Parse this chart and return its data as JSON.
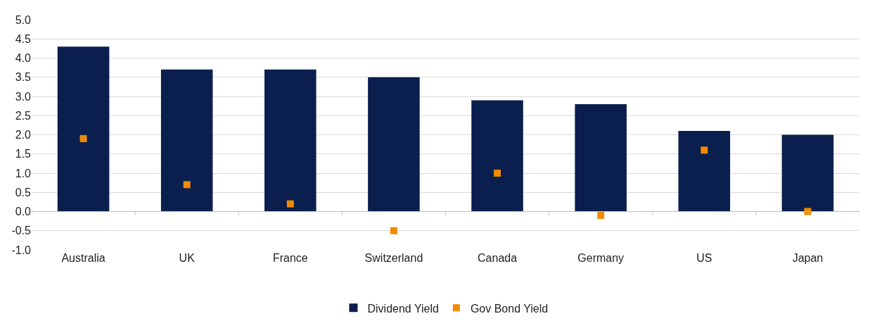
{
  "chart_data": {
    "type": "bar",
    "categories": [
      "Australia",
      "UK",
      "France",
      "Switzerland",
      "Canada",
      "Germany",
      "US",
      "Japan"
    ],
    "series": [
      {
        "name": "Dividend Yield",
        "color": "#0b1f4e",
        "values": [
          4.3,
          3.7,
          3.7,
          3.5,
          2.9,
          2.8,
          2.1,
          2.0
        ]
      },
      {
        "name": "Gov Bond Yield",
        "type": "scatter",
        "color": "#f28a00",
        "marker": "square",
        "values": [
          1.9,
          0.7,
          0.2,
          -0.5,
          1.0,
          -0.1,
          1.6,
          0.0
        ]
      }
    ],
    "ylim": [
      -1,
      5
    ],
    "yticks": [
      {
        "value": -1,
        "label": "-1.0"
      },
      {
        "value": -0.5,
        "label": "-0.5"
      },
      {
        "value": 0,
        "label": "0.0"
      },
      {
        "value": 0.5,
        "label": "0.5"
      },
      {
        "value": 1,
        "label": "1.0"
      },
      {
        "value": 1.5,
        "label": "1.5"
      },
      {
        "value": 2,
        "label": "2.0"
      },
      {
        "value": 2.5,
        "label": "2.5"
      },
      {
        "value": 3,
        "label": "3.0"
      },
      {
        "value": 3.5,
        "label": "3.5"
      },
      {
        "value": 4,
        "label": "4.0"
      },
      {
        "value": 4.5,
        "label": "4.5"
      },
      {
        "value": 5,
        "label": "5.0"
      }
    ],
    "grid": "y",
    "legend": "bottom"
  }
}
